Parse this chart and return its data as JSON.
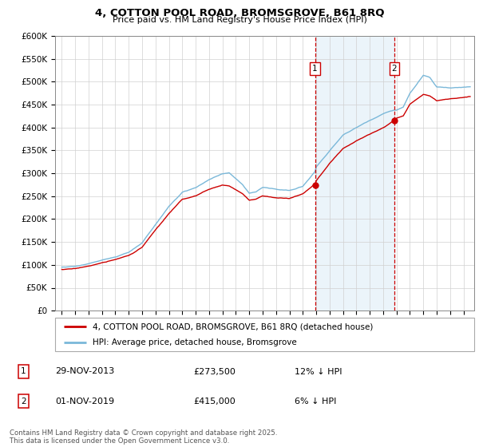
{
  "title": "4, COTTON POOL ROAD, BROMSGROVE, B61 8RQ",
  "subtitle": "Price paid vs. HM Land Registry's House Price Index (HPI)",
  "legend_line1": "4, COTTON POOL ROAD, BROMSGROVE, B61 8RQ (detached house)",
  "legend_line2": "HPI: Average price, detached house, Bromsgrove",
  "transaction1_date": "29-NOV-2013",
  "transaction1_price": "£273,500",
  "transaction1_hpi": "12% ↓ HPI",
  "transaction2_date": "01-NOV-2019",
  "transaction2_price": "£415,000",
  "transaction2_hpi": "6% ↓ HPI",
  "footer": "Contains HM Land Registry data © Crown copyright and database right 2025.\nThis data is licensed under the Open Government Licence v3.0.",
  "hpi_color": "#7ab8d9",
  "price_color": "#cc0000",
  "vline_color": "#cc0000",
  "shaded_color": "#deeef8",
  "ylim": [
    0,
    600000
  ],
  "yticks": [
    0,
    50000,
    100000,
    150000,
    200000,
    250000,
    300000,
    350000,
    400000,
    450000,
    500000,
    550000,
    600000
  ],
  "transaction1_year": 2013.91,
  "transaction2_year": 2019.83,
  "transaction1_price_val": 273500,
  "transaction2_price_val": 415000
}
